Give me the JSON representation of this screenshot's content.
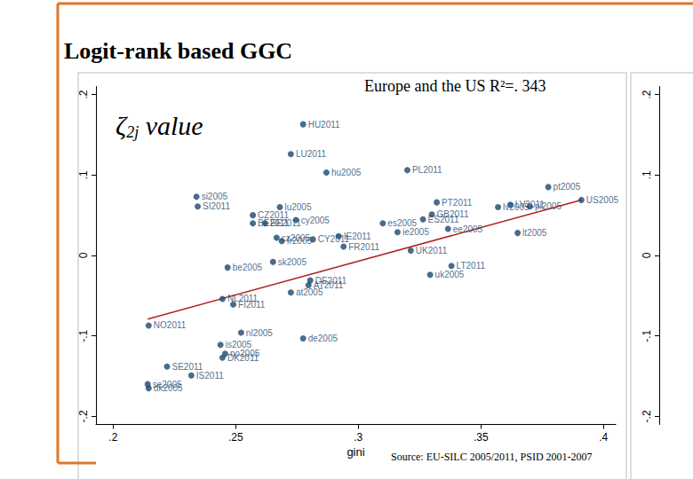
{
  "chart_data": [
    {
      "type": "scatter",
      "title": "Logit-rank based GGC",
      "subtitle": "Europe and the US R²=. 343",
      "annotation": "ζ2j value",
      "x_label": "gini",
      "source": "Source: EU-SILC 2005/2011, PSID 2001-2007",
      "color": "#1a476f",
      "marker": "circle",
      "grid": false,
      "labels": [
        "HU2011",
        "LU2011",
        "PL2011",
        "hu2005",
        "pt2005",
        "si2005",
        "SI2011",
        "lu2005",
        "CZ2011",
        "BE2011",
        "EE2011",
        "cy2005",
        "PT2011",
        "LV2011",
        "US2005",
        "pl2005",
        "lv2005",
        "es2005",
        "ES2011",
        "GB2011",
        "ee2005",
        "cz2005",
        "fr2005",
        "CY2011",
        "IE2011",
        "FR2011",
        "ie2005",
        "UK2011",
        "lt2005",
        "sk2005",
        "be2005",
        "DE2011",
        "AT2011",
        "at2005",
        "uk2005",
        "LT2011",
        "NL2011",
        "FI2011",
        "NO2011",
        "nl2005",
        "is2005",
        "de2005",
        "no2005",
        "DK2011",
        "SE2011",
        "IS2011",
        "se2005",
        "dk2005"
      ],
      "x": [
        0.2775,
        0.2725,
        0.32,
        0.287,
        0.3775,
        0.234,
        0.2345,
        0.268,
        0.257,
        0.257,
        0.262,
        0.2746,
        0.332,
        0.362,
        0.391,
        0.37,
        0.357,
        0.31,
        0.3264,
        0.33,
        0.3366,
        0.2667,
        0.2688,
        0.2815,
        0.292,
        0.294,
        0.316,
        0.3214,
        0.365,
        0.2652,
        0.2467,
        0.2804,
        0.2797,
        0.2725,
        0.3293,
        0.338,
        0.2446,
        0.249,
        0.2145,
        0.2522,
        0.2438,
        0.2775,
        0.2457,
        0.2446,
        0.222,
        0.2319,
        0.2141,
        0.2145
      ],
      "y": [
        0.163,
        0.126,
        0.106,
        0.103,
        0.085,
        0.073,
        0.061,
        0.06,
        0.05,
        0.04,
        0.04,
        0.044,
        0.066,
        0.063,
        0.069,
        0.061,
        0.06,
        0.04,
        0.045,
        0.051,
        0.033,
        0.022,
        0.018,
        0.02,
        0.024,
        0.011,
        0.029,
        0.006,
        0.028,
        -0.008,
        -0.015,
        -0.031,
        -0.037,
        -0.046,
        -0.024,
        -0.013,
        -0.054,
        -0.061,
        -0.087,
        -0.096,
        -0.111,
        -0.103,
        -0.122,
        -0.127,
        -0.138,
        -0.149,
        -0.16,
        -0.165
      ],
      "fit_line": {
        "x": [
          0.2141,
          0.391
        ],
        "y": [
          -0.079,
          0.069
        ],
        "color": "#b22222",
        "line_style": "solid"
      },
      "xlim": [
        0.193,
        0.405
      ],
      "ylim": [
        -0.21,
        0.21
      ],
      "xticks": [
        {
          "value": 0.2,
          "label": ".2"
        },
        {
          "value": 0.25,
          "label": ".25"
        },
        {
          "value": 0.3,
          "label": ".3"
        },
        {
          "value": 0.35,
          "label": ".35"
        },
        {
          "value": 0.4,
          "label": ".4"
        }
      ],
      "yticks": [
        {
          "value": -0.2,
          "label": "-.2"
        },
        {
          "value": -0.1,
          "label": "-.1"
        },
        0,
        {
          "value": 0.1,
          "label": ".1"
        },
        {
          "value": 0.2,
          "label": ".2"
        }
      ]
    },
    {
      "type": "scatter",
      "tick_labels": "y",
      "x": [],
      "y": [],
      "ylim": [
        -0.21,
        0.21
      ],
      "yticks": [
        {
          "value": -0.2,
          "label": "-.2"
        },
        {
          "value": -0.1,
          "label": "-.1"
        },
        0,
        {
          "value": 0.1,
          "label": ".1"
        },
        {
          "value": 0.2,
          "label": ".2"
        }
      ]
    }
  ]
}
